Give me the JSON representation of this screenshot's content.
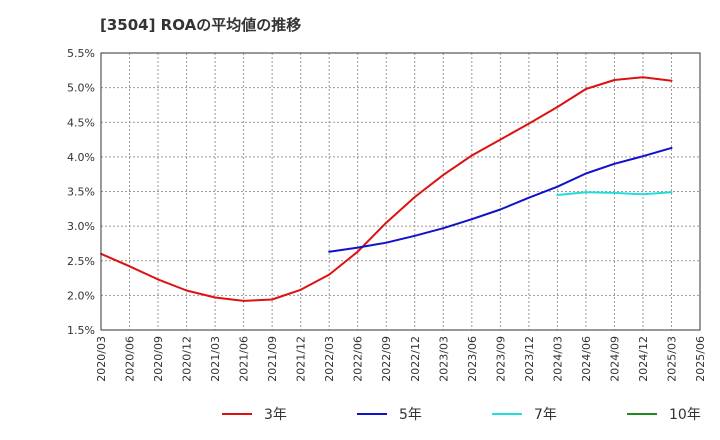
{
  "chart_data": {
    "type": "line",
    "title": "[3504]  ROAの平均値の推移",
    "xlabel": "",
    "ylabel": "",
    "ylim": [
      1.5,
      5.5
    ],
    "y_ticks": [
      "5.5%",
      "5.0%",
      "4.5%",
      "4.0%",
      "3.5%",
      "3.0%",
      "2.5%",
      "2.0%",
      "1.5%"
    ],
    "x_ticks": [
      "2020/03",
      "2020/06",
      "2020/09",
      "2020/12",
      "2021/03",
      "2021/06",
      "2021/09",
      "2021/12",
      "2022/03",
      "2022/06",
      "2022/09",
      "2022/12",
      "2023/03",
      "2023/06",
      "2023/09",
      "2023/12",
      "2024/03",
      "2024/06",
      "2024/09",
      "2024/12",
      "2025/03",
      "2025/06"
    ],
    "grid": true,
    "legend_position": "bottom",
    "series": [
      {
        "name": "3年",
        "color": "#dd1111",
        "points": [
          [
            "2020/03",
            2.6
          ],
          [
            "2020/06",
            2.42
          ],
          [
            "2020/09",
            2.23
          ],
          [
            "2020/12",
            2.07
          ],
          [
            "2021/03",
            1.97
          ],
          [
            "2021/06",
            1.92
          ],
          [
            "2021/09",
            1.94
          ],
          [
            "2021/12",
            2.08
          ],
          [
            "2022/03",
            2.3
          ],
          [
            "2022/06",
            2.63
          ],
          [
            "2022/09",
            3.05
          ],
          [
            "2022/12",
            3.42
          ],
          [
            "2023/03",
            3.74
          ],
          [
            "2023/06",
            4.02
          ],
          [
            "2023/09",
            4.25
          ],
          [
            "2023/12",
            4.48
          ],
          [
            "2024/03",
            4.72
          ],
          [
            "2024/06",
            4.98
          ],
          [
            "2024/09",
            5.11
          ],
          [
            "2024/12",
            5.15
          ],
          [
            "2025/03",
            5.1
          ]
        ]
      },
      {
        "name": "5年",
        "color": "#1111cc",
        "points": [
          [
            "2022/03",
            2.63
          ],
          [
            "2022/06",
            2.69
          ],
          [
            "2022/09",
            2.76
          ],
          [
            "2022/12",
            2.86
          ],
          [
            "2023/03",
            2.97
          ],
          [
            "2023/06",
            3.1
          ],
          [
            "2023/09",
            3.24
          ],
          [
            "2023/12",
            3.41
          ],
          [
            "2024/03",
            3.57
          ],
          [
            "2024/06",
            3.76
          ],
          [
            "2024/09",
            3.9
          ],
          [
            "2024/12",
            4.01
          ],
          [
            "2025/03",
            4.13
          ]
        ]
      },
      {
        "name": "7年",
        "color": "#22dddd",
        "points": [
          [
            "2024/03",
            3.45
          ],
          [
            "2024/06",
            3.49
          ],
          [
            "2024/09",
            3.48
          ],
          [
            "2024/12",
            3.46
          ],
          [
            "2025/03",
            3.49
          ]
        ]
      },
      {
        "name": "10年",
        "color": "#228822",
        "points": []
      }
    ]
  }
}
